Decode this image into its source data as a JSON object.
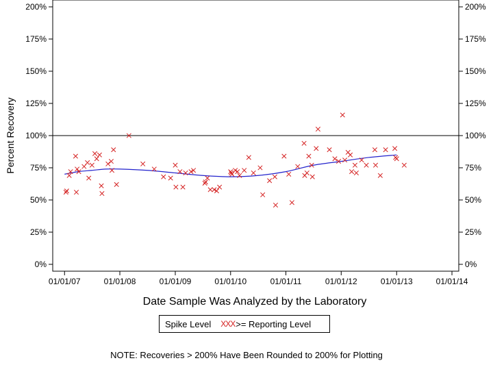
{
  "chart_data": {
    "type": "scatter",
    "title": "",
    "xlabel": "Date Sample Was Analyzed by the Laboratory",
    "ylabel": "Percent Recovery",
    "ylim": [
      0,
      200
    ],
    "xlim": [
      "2006-10-15",
      "2014-02-15"
    ],
    "x_ticks": [
      "01/01/07",
      "01/01/08",
      "01/01/09",
      "01/01/10",
      "01/01/11",
      "01/01/12",
      "01/01/13",
      "01/01/14"
    ],
    "y_ticks": [
      "0%",
      "25%",
      "50%",
      "75%",
      "100%",
      "125%",
      "150%",
      "175%",
      "200%"
    ],
    "reference_line": 100,
    "marker_color": "#d42020",
    "smooth_color": "#2222cc",
    "grid": false,
    "legend_position": "bottom-center",
    "series": [
      {
        "name": "Spike Level >= Reporting Level",
        "marker": "x",
        "points": [
          [
            "2007-01-10",
            56
          ],
          [
            "2007-01-15",
            57
          ],
          [
            "2007-02-01",
            69
          ],
          [
            "2007-02-10",
            72
          ],
          [
            "2007-03-15",
            84
          ],
          [
            "2007-03-20",
            56
          ],
          [
            "2007-03-25",
            74
          ],
          [
            "2007-04-05",
            72
          ],
          [
            "2007-05-10",
            76
          ],
          [
            "2007-06-01",
            79
          ],
          [
            "2007-06-10",
            67
          ],
          [
            "2007-07-01",
            77
          ],
          [
            "2007-07-20",
            86
          ],
          [
            "2007-08-01",
            82
          ],
          [
            "2007-08-20",
            85
          ],
          [
            "2007-09-01",
            61
          ],
          [
            "2007-09-05",
            55
          ],
          [
            "2007-10-15",
            78
          ],
          [
            "2007-11-05",
            80
          ],
          [
            "2007-11-10",
            73
          ],
          [
            "2007-11-20",
            89
          ],
          [
            "2007-12-10",
            62
          ],
          [
            "2008-03-01",
            100
          ],
          [
            "2008-06-01",
            78
          ],
          [
            "2008-08-15",
            74
          ],
          [
            "2008-10-15",
            68
          ],
          [
            "2008-12-01",
            67
          ],
          [
            "2009-01-01",
            77
          ],
          [
            "2009-01-05",
            60
          ],
          [
            "2009-02-01",
            72
          ],
          [
            "2009-02-20",
            60
          ],
          [
            "2009-03-10",
            71
          ],
          [
            "2009-04-15",
            72
          ],
          [
            "2009-05-01",
            73
          ],
          [
            "2009-07-15",
            63
          ],
          [
            "2009-07-20",
            64
          ],
          [
            "2009-08-01",
            67
          ],
          [
            "2009-08-20",
            58
          ],
          [
            "2009-09-15",
            58
          ],
          [
            "2009-10-01",
            57
          ],
          [
            "2009-10-20",
            60
          ],
          [
            "2010-01-01",
            72
          ],
          [
            "2010-01-05",
            71
          ],
          [
            "2010-01-10",
            70
          ],
          [
            "2010-02-01",
            73
          ],
          [
            "2010-02-15",
            72
          ],
          [
            "2010-03-01",
            69
          ],
          [
            "2010-04-01",
            73
          ],
          [
            "2010-05-01",
            83
          ],
          [
            "2010-06-01",
            71
          ],
          [
            "2010-07-15",
            75
          ],
          [
            "2010-08-01",
            54
          ],
          [
            "2010-09-15",
            65
          ],
          [
            "2010-10-20",
            68
          ],
          [
            "2010-10-25",
            46
          ],
          [
            "2010-12-20",
            84
          ],
          [
            "2011-01-20",
            70
          ],
          [
            "2011-02-10",
            48
          ],
          [
            "2011-03-20",
            76
          ],
          [
            "2011-05-01",
            94
          ],
          [
            "2011-05-05",
            69
          ],
          [
            "2011-05-20",
            71
          ],
          [
            "2011-06-01",
            84
          ],
          [
            "2011-06-20",
            77
          ],
          [
            "2011-06-25",
            68
          ],
          [
            "2011-07-20",
            90
          ],
          [
            "2011-08-01",
            105
          ],
          [
            "2011-10-15",
            89
          ],
          [
            "2011-11-20",
            82
          ],
          [
            "2011-12-15",
            80
          ],
          [
            "2012-01-10",
            116
          ],
          [
            "2012-01-25",
            81
          ],
          [
            "2012-02-15",
            87
          ],
          [
            "2012-03-01",
            85
          ],
          [
            "2012-03-10",
            72
          ],
          [
            "2012-04-01",
            77
          ],
          [
            "2012-04-10",
            71
          ],
          [
            "2012-05-15",
            81
          ],
          [
            "2012-06-15",
            77
          ],
          [
            "2012-08-10",
            89
          ],
          [
            "2012-08-15",
            77
          ],
          [
            "2012-09-15",
            69
          ],
          [
            "2012-10-20",
            89
          ],
          [
            "2012-12-20",
            90
          ],
          [
            "2012-12-25",
            83
          ],
          [
            "2013-01-01",
            82
          ],
          [
            "2013-02-20",
            77
          ]
        ]
      }
    ],
    "smooth_curve": [
      [
        "2007-01-01",
        70
      ],
      [
        "2007-04-01",
        72
      ],
      [
        "2007-07-01",
        73
      ],
      [
        "2007-10-01",
        74
      ],
      [
        "2008-01-01",
        74
      ],
      [
        "2008-07-01",
        73
      ],
      [
        "2009-01-01",
        71
      ],
      [
        "2009-07-01",
        69
      ],
      [
        "2010-01-01",
        68
      ],
      [
        "2010-07-01",
        69
      ],
      [
        "2011-01-01",
        72
      ],
      [
        "2011-07-01",
        77
      ],
      [
        "2012-01-01",
        80
      ],
      [
        "2012-07-01",
        83
      ],
      [
        "2013-01-01",
        85
      ]
    ]
  },
  "legend": {
    "label1": "Spike Level",
    "marks": "XXX",
    "label2": ">= Reporting Level"
  },
  "footer": {
    "note": "NOTE: Recoveries > 200% Have Been Rounded to 200% for Plotting"
  }
}
